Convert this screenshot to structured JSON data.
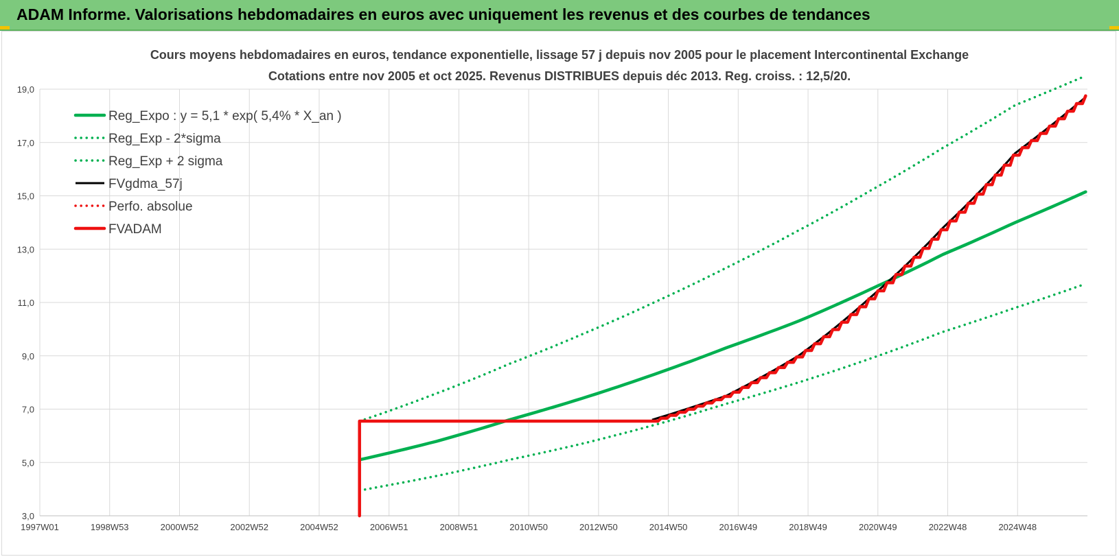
{
  "banner": {
    "title": "ADAM Informe. Valorisations hebdomadaires en euros avec uniquement les revenus et des courbes de tendances"
  },
  "colors": {
    "banner": "#7dc97d",
    "green": "#00b050",
    "red": "#ee1111",
    "black": "#000000",
    "grid": "#d9d9d9",
    "text": "#404040"
  },
  "chart_data": {
    "type": "line",
    "title": "Cours moyens hebdomadaires en euros, tendance exponentielle, lissage 57 j depuis nov 2005 pour le placement Intercontinental Exchange",
    "subtitle": "Cotations entre nov 2005 et oct 2025. Revenus DISTRIBUES depuis déc 2013. Reg. croiss. : 12,5/20.",
    "x_ticks": [
      "1997W01",
      "1998W53",
      "2000W52",
      "2002W52",
      "2004W52",
      "2006W51",
      "2008W51",
      "2010W50",
      "2012W50",
      "2014W50",
      "2016W49",
      "2018W49",
      "2020W49",
      "2022W48",
      "2024W48"
    ],
    "y_ticks": [
      "3,0",
      "5,0",
      "7,0",
      "9,0",
      "11,0",
      "13,0",
      "15,0",
      "17,0",
      "19,0"
    ],
    "xlim": [
      1997.0,
      2026.0
    ],
    "ylim": [
      3.0,
      19.0
    ],
    "grid": true,
    "legend_position": "top-left",
    "series": [
      {
        "name": "Reg_Expo : y = 5,1 * exp( 5,4% *  X_an )",
        "style": "solid",
        "color": "#00b050",
        "x": [
          2005.85,
          2008,
          2010,
          2012,
          2014,
          2016,
          2018,
          2020,
          2022,
          2024,
          2025.95
        ],
        "y": [
          5.1,
          5.8,
          6.6,
          7.4,
          8.3,
          9.3,
          10.3,
          11.5,
          12.8,
          14.0,
          15.15
        ]
      },
      {
        "name": "Reg_Exp - 2*sigma",
        "style": "dotted",
        "color": "#00b050",
        "x": [
          2005.85,
          2008,
          2010,
          2012,
          2014,
          2016,
          2018,
          2020,
          2022,
          2024,
          2025.95
        ],
        "y": [
          3.95,
          4.5,
          5.1,
          5.7,
          6.4,
          7.2,
          8.0,
          8.9,
          9.9,
          10.8,
          11.7
        ]
      },
      {
        "name": "Reg_Exp + 2 sigma",
        "style": "dotted",
        "color": "#00b050",
        "x": [
          2005.85,
          2008,
          2010,
          2012,
          2014,
          2016,
          2018,
          2020,
          2022,
          2024,
          2025.95
        ],
        "y": [
          6.55,
          7.6,
          8.7,
          9.8,
          11.0,
          12.3,
          13.7,
          15.2,
          16.8,
          18.4,
          19.5
        ]
      },
      {
        "name": "FVgdma_57j",
        "style": "solid",
        "color": "#000000",
        "x": [
          2013.95,
          2016,
          2018,
          2020,
          2022,
          2024,
          2025.95
        ],
        "y": [
          6.6,
          7.5,
          9.0,
          11.2,
          13.8,
          16.6,
          18.7
        ]
      },
      {
        "name": "Perfo. absolue",
        "style": "dotted",
        "color": "#ee1111",
        "x": [],
        "y": []
      },
      {
        "name": "FVADAM",
        "style": "solid",
        "color": "#ee1111",
        "x": [
          2005.85,
          2005.85,
          2013.95,
          2016,
          2018,
          2020,
          2022,
          2024,
          2025.95
        ],
        "y": [
          3.0,
          6.55,
          6.55,
          7.5,
          9.0,
          11.2,
          13.8,
          16.6,
          18.75
        ]
      }
    ]
  }
}
